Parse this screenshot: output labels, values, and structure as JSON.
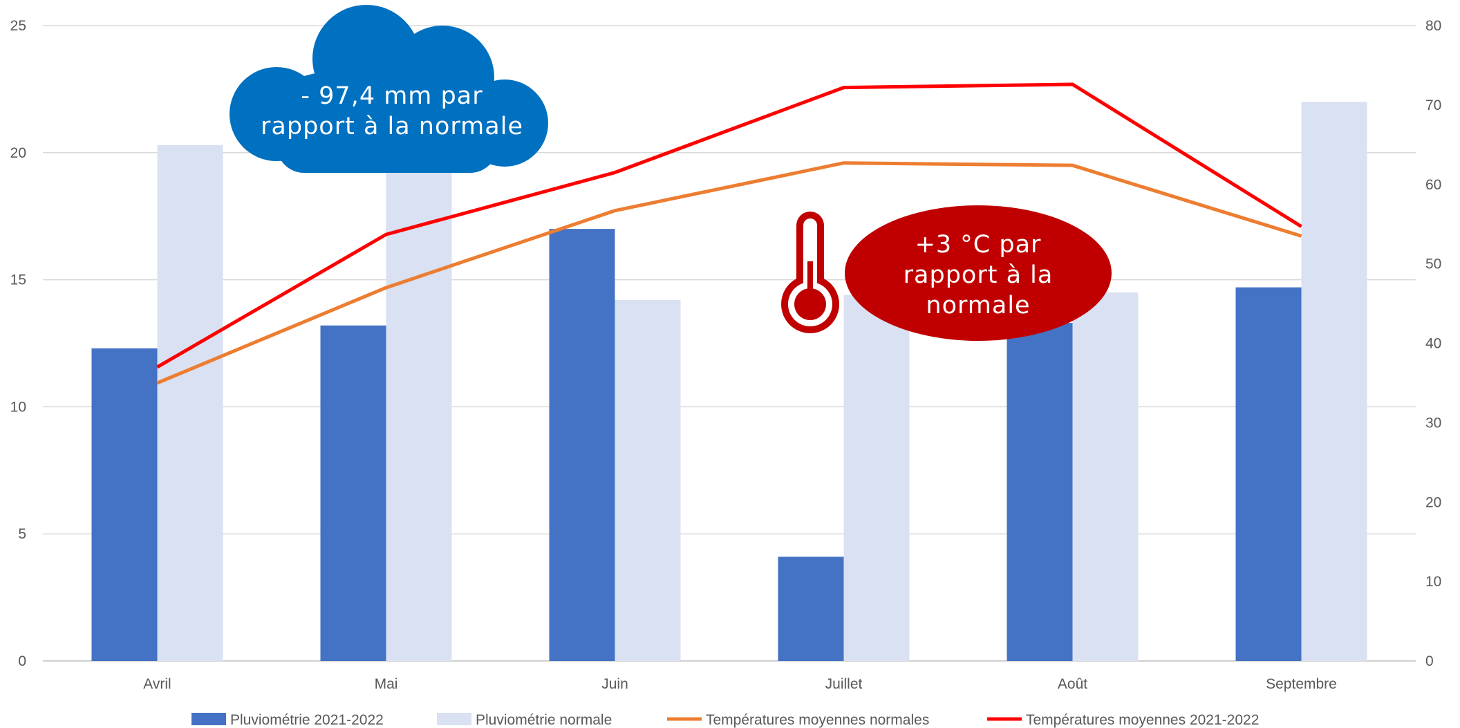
{
  "chart_data": {
    "type": "bar",
    "categories": [
      "Avril",
      "Mai",
      "Juin",
      "Juillet",
      "Août",
      "Septembre"
    ],
    "series": [
      {
        "name": "Pluviométrie 2021-2022",
        "kind": "bar",
        "axis": "left",
        "color": "#4472C4",
        "values": [
          12.3,
          13.2,
          17.0,
          4.1,
          13.3,
          14.7
        ]
      },
      {
        "name": "Pluviométrie normale",
        "kind": "bar",
        "axis": "left",
        "color": "#D9E1F2",
        "values": [
          20.3,
          19.5,
          14.2,
          14.4,
          14.5,
          22.0
        ]
      },
      {
        "name": "Températures moyennes normales",
        "kind": "line",
        "axis": "right",
        "color": "#ED7D31",
        "values": [
          35,
          47,
          56.7,
          62.7,
          62.4,
          53.5
        ]
      },
      {
        "name": "Températures moyennes 2021-2022",
        "kind": "line",
        "axis": "right",
        "color": "#FF0000",
        "values": [
          37,
          53.7,
          61.5,
          72.2,
          72.6,
          54.7
        ]
      }
    ],
    "y_left": {
      "min": 0,
      "max": 25,
      "ticks": [
        "0",
        "5",
        "10",
        "15",
        "20",
        "25"
      ]
    },
    "y_right": {
      "min": 0,
      "max": 80,
      "ticks": [
        "0",
        "10",
        "20",
        "30",
        "40",
        "50",
        "60",
        "70",
        "80"
      ]
    },
    "grid": true,
    "legend_position": "bottom",
    "annotations": [
      {
        "text_lines": [
          "- 97,4 mm par",
          "rapport à la normale"
        ],
        "shape": "cloud",
        "color": "#0070C0"
      },
      {
        "text_lines": [
          "+3 °C par",
          "rapport à la",
          "normale"
        ],
        "shape": "ellipse",
        "color": "#C00000"
      }
    ]
  }
}
